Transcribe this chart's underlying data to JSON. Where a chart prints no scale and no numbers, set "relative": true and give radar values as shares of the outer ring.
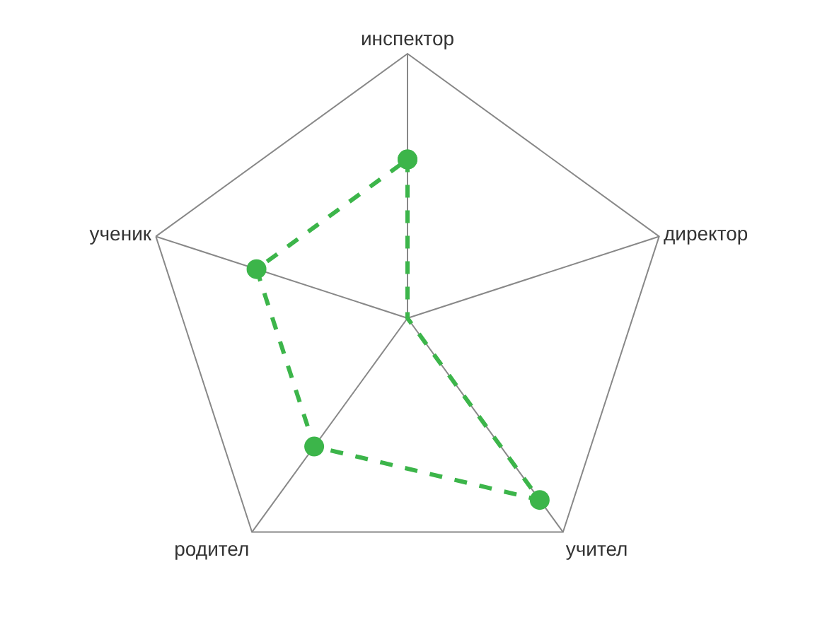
{
  "chart_data": {
    "type": "radar",
    "relative": true,
    "categories": [
      "инспектор",
      "директор",
      "учител",
      "родител",
      "ученик"
    ],
    "series": [
      {
        "color": "#3cb54a",
        "values": [
          0.6,
          0,
          0.85,
          0.6,
          0.6
        ]
      }
    ],
    "marker": "circle",
    "line_style": "dashed",
    "grid": "x"
  }
}
